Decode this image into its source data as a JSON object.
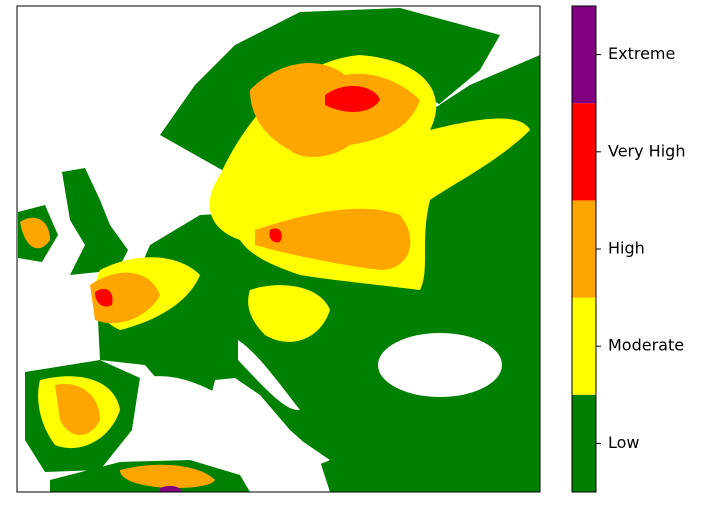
{
  "map": {
    "legend": {
      "categories": [
        "Low",
        "Moderate",
        "High",
        "Very High",
        "Extreme"
      ],
      "colors": [
        "#008000",
        "#ffff00",
        "#ffa500",
        "#ff0000",
        "#800080"
      ]
    }
  }
}
